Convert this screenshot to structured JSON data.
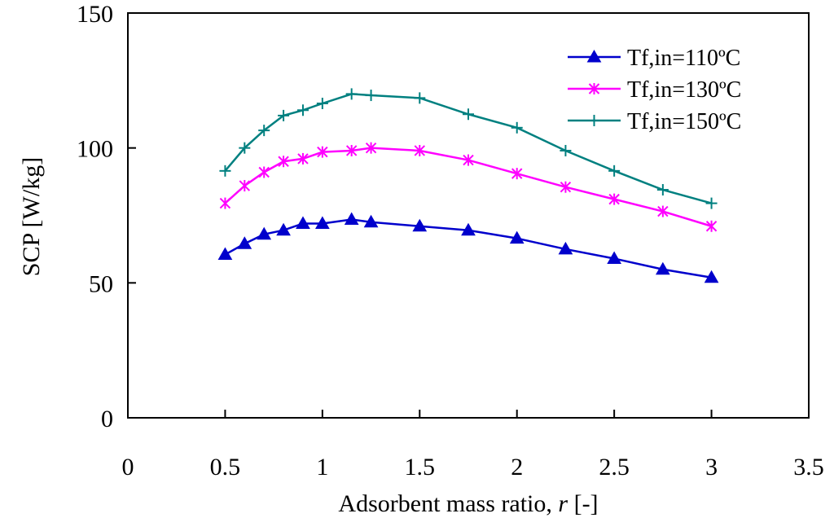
{
  "chart_data": {
    "type": "line",
    "title": "",
    "xlabel": "Adsorbent mass ratio, ",
    "xlabel_var": "r",
    "xlabel_unit": " [-]",
    "ylabel": "SCP [W/kg]",
    "xlim": [
      0,
      3.5
    ],
    "ylim": [
      0,
      150
    ],
    "xticks": [
      "0",
      "0.5",
      "1",
      "1.5",
      "2",
      "2.5",
      "3",
      "3.5"
    ],
    "yticks": [
      "0",
      "50",
      "100",
      "150"
    ],
    "grid": false,
    "legend_position": "top-right",
    "x": [
      0.5,
      0.6,
      0.7,
      0.8,
      0.9,
      1.0,
      1.15,
      1.25,
      1.5,
      1.75,
      2.0,
      2.25,
      2.5,
      2.75,
      3.0
    ],
    "series": [
      {
        "name": "Tf,in=110ºC",
        "color": "#0000CC",
        "marker": "triangle",
        "values": [
          60.5,
          64.5,
          68,
          69.5,
          72,
          72,
          73.5,
          72.5,
          71,
          69.5,
          66.5,
          62.5,
          59,
          55,
          52
        ]
      },
      {
        "name": "Tf,in=130ºC",
        "color": "#FF00FF",
        "marker": "asterisk",
        "values": [
          79.5,
          86,
          91,
          95,
          96,
          98.5,
          99,
          100,
          99,
          95.5,
          90.5,
          85.5,
          81,
          76.5,
          71
        ]
      },
      {
        "name": "Tf,in=150ºC",
        "color": "#008080",
        "marker": "plus",
        "values": [
          91.5,
          100,
          106.5,
          112,
          114,
          116.5,
          120,
          119.5,
          118.5,
          112.5,
          107.5,
          99,
          91.5,
          84.5,
          79.5
        ]
      }
    ]
  }
}
